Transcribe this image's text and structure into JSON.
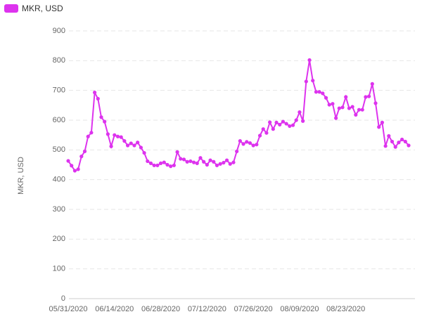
{
  "chart_data": {
    "type": "line",
    "y_label": "MKR, USD",
    "categories": [
      "05/31/2020",
      null,
      null,
      null,
      null,
      null,
      null,
      null,
      null,
      null,
      null,
      null,
      null,
      null,
      "06/14/2020",
      null,
      null,
      null,
      null,
      null,
      null,
      null,
      null,
      null,
      null,
      null,
      null,
      null,
      "06/28/2020",
      null,
      null,
      null,
      null,
      null,
      null,
      null,
      null,
      null,
      null,
      null,
      null,
      null,
      "07/12/2020",
      null,
      null,
      null,
      null,
      null,
      null,
      null,
      null,
      null,
      null,
      null,
      null,
      null,
      "07/26/2020",
      null,
      null,
      null,
      null,
      null,
      null,
      null,
      null,
      null,
      null,
      null,
      null,
      null,
      "08/09/2020",
      null,
      null,
      null,
      null,
      null,
      null,
      null,
      null,
      null,
      null,
      null,
      null,
      null,
      "08/23/2020",
      null,
      null,
      null,
      null,
      null,
      null,
      null,
      null,
      null,
      null,
      null,
      null,
      null,
      null,
      null,
      null,
      null,
      null,
      null
    ],
    "series": [
      {
        "name": "MKR, USD",
        "color": "#dd33ee",
        "values": [
          463,
          447,
          430,
          435,
          478,
          495,
          545,
          558,
          693,
          672,
          610,
          595,
          553,
          512,
          550,
          545,
          543,
          530,
          515,
          522,
          515,
          525,
          508,
          490,
          462,
          455,
          448,
          448,
          455,
          458,
          450,
          445,
          448,
          493,
          470,
          468,
          460,
          462,
          458,
          455,
          473,
          460,
          450,
          465,
          460,
          448,
          453,
          457,
          465,
          453,
          458,
          495,
          530,
          520,
          527,
          523,
          515,
          518,
          548,
          570,
          557,
          593,
          570,
          592,
          585,
          595,
          588,
          580,
          583,
          600,
          627,
          597,
          730,
          802,
          733,
          695,
          695,
          690,
          675,
          652,
          655,
          607,
          640,
          643,
          678,
          640,
          645,
          618,
          635,
          635,
          678,
          680,
          722,
          657,
          577,
          592,
          513,
          547,
          528,
          510,
          525,
          535,
          528,
          515
        ]
      }
    ],
    "ylim": [
      0,
      900
    ],
    "yticks": [
      0,
      100,
      200,
      300,
      400,
      500,
      600,
      700,
      800,
      900
    ],
    "grid": true,
    "legend": "top-left"
  }
}
